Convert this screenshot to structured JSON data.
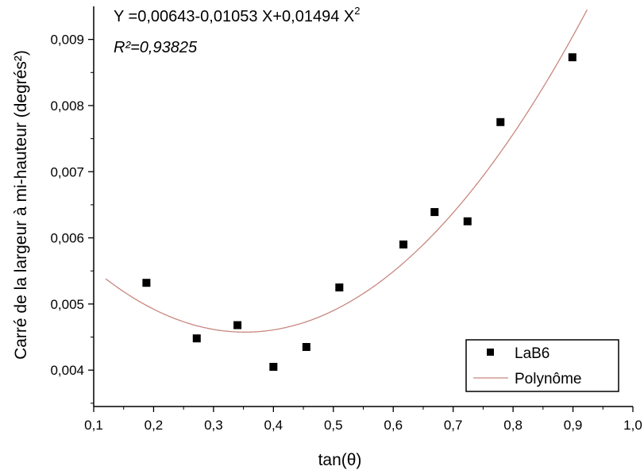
{
  "chart_data": {
    "type": "scatter",
    "xlabel": "tan(θ)",
    "ylabel": "Carré de la largeur à mi-hauteur (degrés²)",
    "xlim": [
      0.1,
      1.0
    ],
    "ylim": [
      0.00345,
      0.0095
    ],
    "x_ticks": [
      "0,1",
      "0,2",
      "0,3",
      "0,4",
      "0,5",
      "0,6",
      "0,7",
      "0,8",
      "0,9",
      "1,0"
    ],
    "y_ticks": [
      "0,004",
      "0,005",
      "0,006",
      "0,007",
      "0,008",
      "0,009"
    ],
    "x_tick_values": [
      0.1,
      0.2,
      0.3,
      0.4,
      0.5,
      0.6,
      0.7,
      0.8,
      0.9,
      1.0
    ],
    "y_tick_values": [
      0.004,
      0.005,
      0.006,
      0.007,
      0.008,
      0.009
    ],
    "grid": false,
    "legend_position": "bottom-right",
    "annotations": {
      "equation_main": "Y =0,00643-0,01053 X+0,01494 X",
      "equation_sup": "2",
      "r_squared": "R²=0,93825"
    },
    "series": [
      {
        "name": "LaB6",
        "type": "scatter",
        "color": "#000000",
        "points": [
          {
            "x": 0.188,
            "y": 0.00532
          },
          {
            "x": 0.272,
            "y": 0.00448
          },
          {
            "x": 0.34,
            "y": 0.00468
          },
          {
            "x": 0.4,
            "y": 0.00405
          },
          {
            "x": 0.455,
            "y": 0.00435
          },
          {
            "x": 0.51,
            "y": 0.00525
          },
          {
            "x": 0.617,
            "y": 0.0059
          },
          {
            "x": 0.669,
            "y": 0.00639
          },
          {
            "x": 0.724,
            "y": 0.00625
          },
          {
            "x": 0.779,
            "y": 0.00775
          },
          {
            "x": 0.899,
            "y": 0.00873
          }
        ]
      },
      {
        "name": "Polynôme",
        "type": "line",
        "color": "#c8877f",
        "coefficients": [
          0.00643,
          -0.01053,
          0.01494
        ],
        "x_range": [
          0.12,
          0.94
        ]
      }
    ]
  }
}
